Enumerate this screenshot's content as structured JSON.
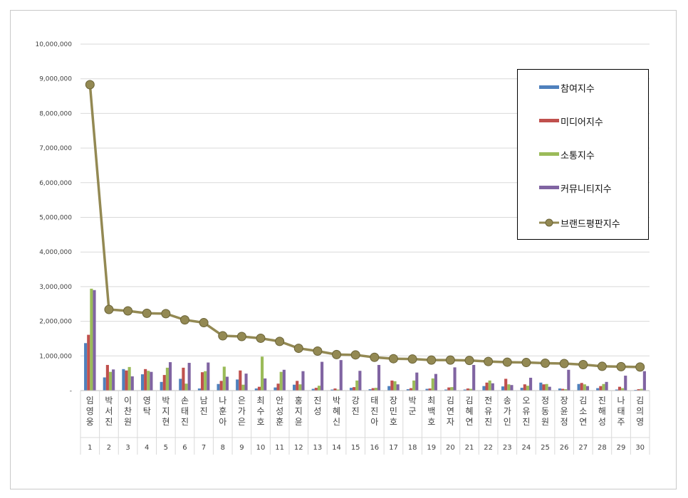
{
  "chart_data": {
    "type": "bar",
    "categories": [
      "임영웅",
      "박서진",
      "이찬원",
      "영탁",
      "박지현",
      "손태진",
      "남진",
      "나훈아",
      "은가은",
      "최수호",
      "안성훈",
      "홍지윤",
      "진성",
      "박혜신",
      "강진",
      "태진아",
      "장민호",
      "박군",
      "최백호",
      "김연자",
      "김혜연",
      "전유진",
      "송가인",
      "오유진",
      "정동원",
      "장윤정",
      "김소연",
      "진해성",
      "나태주",
      "김의영"
    ],
    "ranks": [
      "1",
      "2",
      "3",
      "4",
      "5",
      "6",
      "7",
      "8",
      "9",
      "10",
      "11",
      "12",
      "13",
      "14",
      "15",
      "16",
      "17",
      "18",
      "19",
      "20",
      "21",
      "22",
      "23",
      "24",
      "25",
      "26",
      "27",
      "28",
      "29",
      "30"
    ],
    "series": [
      {
        "name": "참여지수",
        "color": "#4f81bd",
        "type": "bar",
        "values": [
          1370000,
          380000,
          620000,
          470000,
          250000,
          340000,
          60000,
          190000,
          320000,
          60000,
          90000,
          170000,
          50000,
          30000,
          80000,
          40000,
          130000,
          40000,
          50000,
          30000,
          30000,
          130000,
          120000,
          80000,
          230000,
          60000,
          190000,
          70000,
          30000,
          20000
        ]
      },
      {
        "name": "미디어지수",
        "color": "#c0504d",
        "type": "bar",
        "values": [
          1610000,
          740000,
          580000,
          620000,
          450000,
          660000,
          530000,
          280000,
          580000,
          110000,
          200000,
          280000,
          80000,
          60000,
          100000,
          70000,
          290000,
          70000,
          60000,
          90000,
          60000,
          230000,
          340000,
          180000,
          180000,
          50000,
          220000,
          130000,
          110000,
          40000
        ]
      },
      {
        "name": "소통지수",
        "color": "#9bbb59",
        "type": "bar",
        "values": [
          2940000,
          540000,
          680000,
          570000,
          660000,
          200000,
          560000,
          690000,
          170000,
          980000,
          540000,
          180000,
          140000,
          30000,
          290000,
          80000,
          270000,
          290000,
          350000,
          100000,
          50000,
          290000,
          180000,
          140000,
          190000,
          40000,
          180000,
          190000,
          70000,
          50000
        ]
      },
      {
        "name": "커뮤니티지수",
        "color": "#8064a2",
        "type": "bar",
        "values": [
          2900000,
          610000,
          410000,
          540000,
          820000,
          800000,
          810000,
          400000,
          490000,
          350000,
          600000,
          560000,
          830000,
          880000,
          570000,
          740000,
          180000,
          520000,
          480000,
          670000,
          740000,
          210000,
          160000,
          370000,
          110000,
          600000,
          130000,
          250000,
          430000,
          560000
        ]
      },
      {
        "name": "브랜드평판지수",
        "color": "#938953",
        "type": "line",
        "values": [
          8830000,
          2340000,
          2300000,
          2230000,
          2220000,
          2040000,
          1960000,
          1580000,
          1560000,
          1510000,
          1420000,
          1220000,
          1140000,
          1040000,
          1030000,
          960000,
          920000,
          910000,
          880000,
          880000,
          870000,
          840000,
          820000,
          810000,
          790000,
          780000,
          750000,
          700000,
          690000,
          680000
        ]
      }
    ],
    "y_ticks": [
      "-",
      "1,000,000",
      "2,000,000",
      "3,000,000",
      "4,000,000",
      "5,000,000",
      "6,000,000",
      "7,000,000",
      "8,000,000",
      "9,000,000",
      "10,000,000"
    ],
    "ylim": [
      0,
      10000000
    ],
    "grid": true,
    "legend_position": "top-right"
  }
}
